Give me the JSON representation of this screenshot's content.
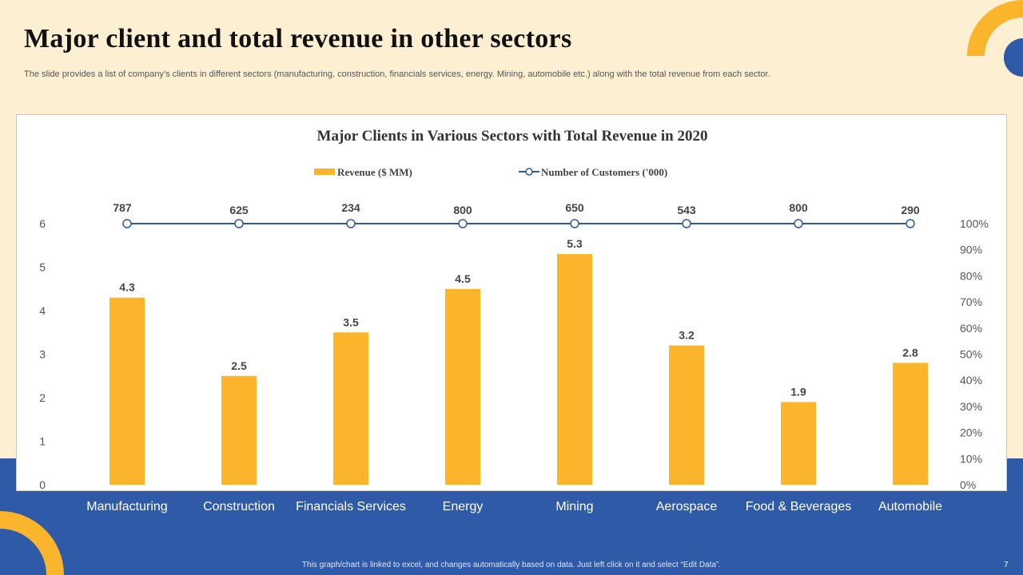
{
  "slide": {
    "title": "Major client and total revenue in other sectors",
    "subtitle": "The slide provides a list of company’s clients in different sectors (manufacturing, construction, financials services, energy. Mining, automobile etc.) along with the total revenue from each sector.",
    "footer_note": "This graph/chart is linked to excel, and changes automatically based on data. Just left click on it and select “Edit Data”.",
    "page_number": "7"
  },
  "colors": {
    "background": "#fdefd2",
    "band": "#2f5aa8",
    "accent_yellow": "#fbb52c",
    "line_blue": "#2e5a9a"
  },
  "chart_data": {
    "type": "bar",
    "title": "Major Clients in Various Sectors with Total Revenue in 2020",
    "categories": [
      "Manufacturing",
      "Construction",
      "Financials Services",
      "Energy",
      "Mining",
      "Aerospace",
      "Food & Beverages",
      "Automobile"
    ],
    "series": [
      {
        "name": "Revenue ($ MM)",
        "type": "bar",
        "axis": "left",
        "values": [
          4.3,
          2.5,
          3.5,
          4.5,
          5.3,
          3.2,
          1.9,
          2.8
        ],
        "labels": [
          "4.3",
          "2.5",
          "3.5",
          "4.5",
          "5.3",
          "3.2",
          "1.9",
          "2.8"
        ]
      },
      {
        "name": "Number of Customers ('000)",
        "type": "line",
        "axis": "right",
        "values": [
          787,
          625,
          234,
          800,
          650,
          543,
          800,
          290
        ],
        "labels": [
          "787",
          "625",
          "234",
          "800",
          "650",
          "543",
          "800",
          "290"
        ],
        "plotted_percent": 100
      }
    ],
    "y_left": {
      "min": 0,
      "max": 6,
      "ticks": [
        "0",
        "1",
        "2",
        "3",
        "4",
        "5",
        "6"
      ]
    },
    "y_right": {
      "min": 0,
      "max": 100,
      "ticks": [
        "0%",
        "10%",
        "20%",
        "30%",
        "40%",
        "50%",
        "60%",
        "70%",
        "80%",
        "90%",
        "100%"
      ]
    },
    "legend_position": "top-center",
    "grid": false
  }
}
